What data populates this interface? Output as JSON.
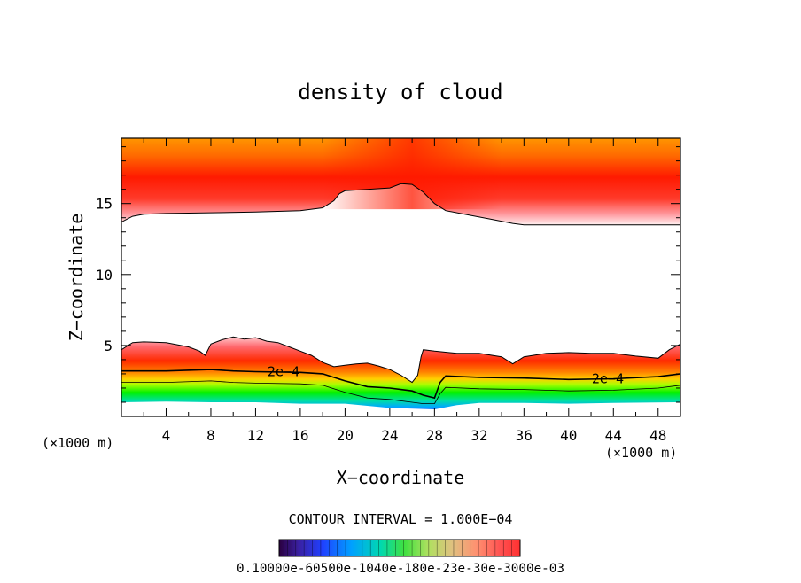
{
  "chart_data": {
    "type": "contour",
    "title": "density of cloud",
    "xlabel": "X−coordinate",
    "ylabel": "Z−coordinate",
    "x_unit_left": "(×1000 m)",
    "x_unit_right": "(×1000 m)",
    "xlim": [
      0,
      50
    ],
    "ylim": [
      0,
      19.6
    ],
    "x_ticks": [
      4,
      8,
      12,
      16,
      20,
      24,
      28,
      32,
      36,
      40,
      44,
      48
    ],
    "x_tick_labels": [
      "4",
      "8",
      "12",
      "16",
      "20",
      "24",
      "28",
      "32",
      "36",
      "40",
      "44",
      "48"
    ],
    "y_ticks": [
      5,
      10,
      15
    ],
    "y_tick_labels": [
      "5",
      "10",
      "15"
    ],
    "contour_interval_text": "CONTOUR INTERVAL = 1.000E−04",
    "colorbar_labels_text": "0.10000e-60500e-1040e-180e-23e-30e-3000e-03",
    "colorbar_min": 0.0001,
    "colorbar_max": 0.003,
    "contour_labels": [
      {
        "text": "2e−4",
        "x": 14.5,
        "z": 3.1
      },
      {
        "text": "2e−4",
        "x": 43.5,
        "z": 2.6
      }
    ],
    "upper_layer_bottom": [
      [
        0,
        13.7
      ],
      [
        1,
        14.1
      ],
      [
        2,
        14.25
      ],
      [
        4,
        14.3
      ],
      [
        8,
        14.35
      ],
      [
        12,
        14.4
      ],
      [
        16,
        14.5
      ],
      [
        18,
        14.7
      ],
      [
        19,
        15.2
      ],
      [
        19.5,
        15.7
      ],
      [
        20,
        15.9
      ],
      [
        22,
        16.0
      ],
      [
        24,
        16.1
      ],
      [
        25,
        16.4
      ],
      [
        26,
        16.35
      ],
      [
        27,
        15.8
      ],
      [
        28,
        15.0
      ],
      [
        29,
        14.5
      ],
      [
        31,
        14.2
      ],
      [
        33,
        13.9
      ],
      [
        35,
        13.6
      ],
      [
        36,
        13.5
      ],
      [
        40,
        13.5
      ],
      [
        44,
        13.5
      ],
      [
        48,
        13.5
      ],
      [
        50,
        13.5
      ]
    ],
    "lower_layer_top": [
      [
        0,
        4.7
      ],
      [
        1,
        5.2
      ],
      [
        2,
        5.25
      ],
      [
        4,
        5.2
      ],
      [
        6,
        4.9
      ],
      [
        7,
        4.6
      ],
      [
        7.5,
        4.3
      ],
      [
        8,
        5.1
      ],
      [
        9,
        5.4
      ],
      [
        10,
        5.6
      ],
      [
        11,
        5.45
      ],
      [
        12,
        5.55
      ],
      [
        13,
        5.3
      ],
      [
        14,
        5.2
      ],
      [
        15,
        4.9
      ],
      [
        16,
        4.6
      ],
      [
        17,
        4.3
      ],
      [
        18,
        3.8
      ],
      [
        19,
        3.5
      ],
      [
        20,
        3.6
      ],
      [
        21,
        3.7
      ],
      [
        22,
        3.75
      ],
      [
        23,
        3.55
      ],
      [
        24,
        3.3
      ],
      [
        25,
        2.9
      ],
      [
        26,
        2.4
      ],
      [
        26.5,
        2.9
      ],
      [
        26.8,
        4.2
      ],
      [
        27,
        4.7
      ],
      [
        28,
        4.6
      ],
      [
        30,
        4.45
      ],
      [
        32,
        4.45
      ],
      [
        34,
        4.2
      ],
      [
        35,
        3.7
      ],
      [
        36,
        4.2
      ],
      [
        38,
        4.45
      ],
      [
        40,
        4.5
      ],
      [
        42,
        4.45
      ],
      [
        44,
        4.45
      ],
      [
        46,
        4.25
      ],
      [
        48,
        4.1
      ],
      [
        49,
        4.7
      ],
      [
        50,
        5.1
      ]
    ],
    "contour_2e4": [
      [
        0,
        3.2
      ],
      [
        4,
        3.2
      ],
      [
        8,
        3.3
      ],
      [
        10,
        3.2
      ],
      [
        12,
        3.15
      ],
      [
        16,
        3.1
      ],
      [
        18,
        3.0
      ],
      [
        20,
        2.5
      ],
      [
        22,
        2.1
      ],
      [
        24,
        2.0
      ],
      [
        26,
        1.8
      ],
      [
        27,
        1.5
      ],
      [
        28,
        1.3
      ],
      [
        28.5,
        2.4
      ],
      [
        29,
        2.85
      ],
      [
        32,
        2.75
      ],
      [
        36,
        2.7
      ],
      [
        40,
        2.6
      ],
      [
        44,
        2.65
      ],
      [
        48,
        2.8
      ],
      [
        50,
        3.0
      ]
    ],
    "ground_min": [
      [
        0,
        1.0
      ],
      [
        4,
        1.05
      ],
      [
        8,
        1.0
      ],
      [
        12,
        1.0
      ],
      [
        16,
        0.9
      ],
      [
        20,
        0.9
      ],
      [
        24,
        0.6
      ],
      [
        28,
        0.5
      ],
      [
        30,
        0.8
      ],
      [
        32,
        0.95
      ],
      [
        36,
        0.95
      ],
      [
        40,
        0.9
      ],
      [
        44,
        0.95
      ],
      [
        50,
        1.0
      ]
    ]
  }
}
